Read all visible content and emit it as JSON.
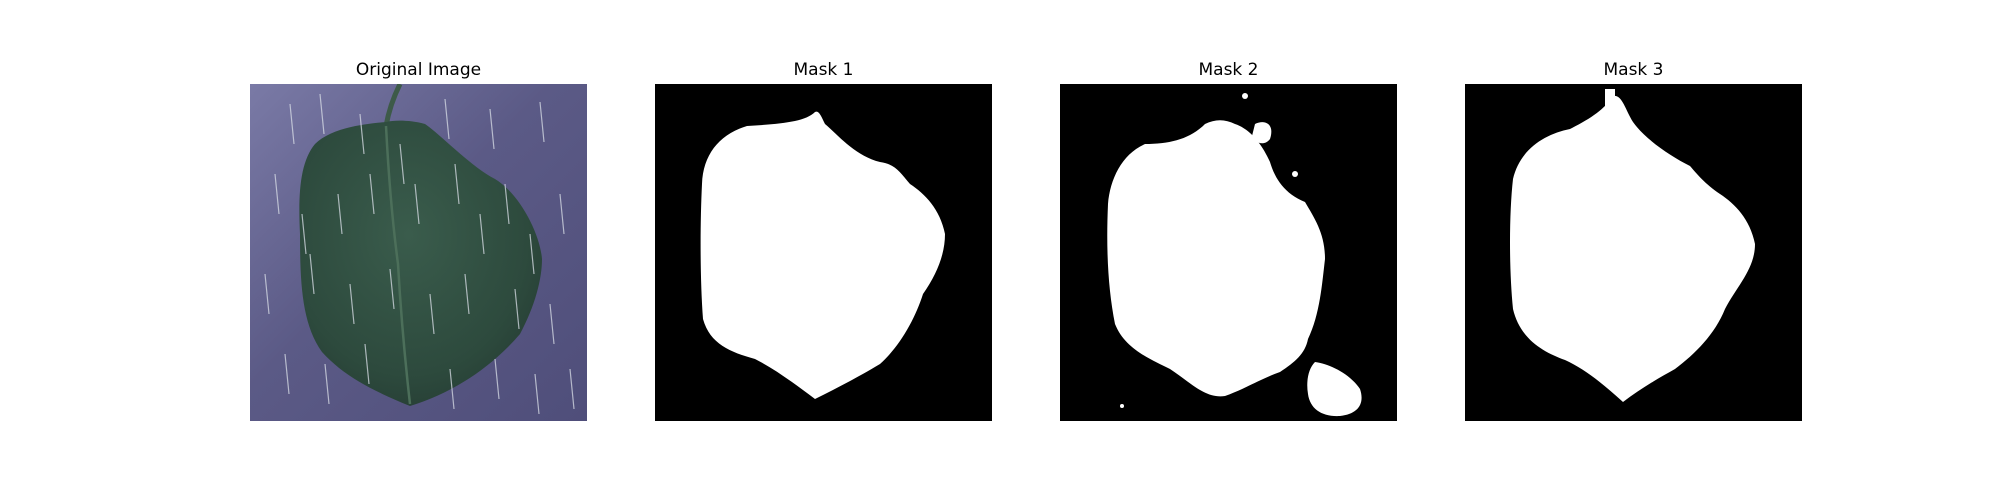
{
  "figure": {
    "panels": [
      {
        "title": "Original Image"
      },
      {
        "title": "Mask 1"
      },
      {
        "title": "Mask 2"
      },
      {
        "title": "Mask 3"
      }
    ]
  },
  "colors": {
    "mask_background": "#000000",
    "mask_foreground": "#ffffff",
    "photo_background": "#5f5e8c",
    "leaf": "#2f4b3e",
    "rain_streaks": "#d8dde6"
  }
}
